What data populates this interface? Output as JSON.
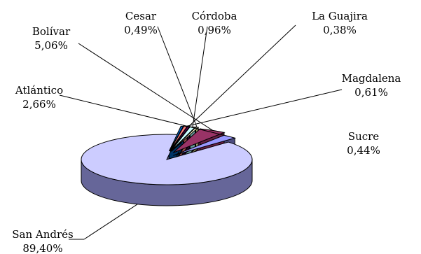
{
  "chart_data": {
    "type": "pie",
    "title": "",
    "style": "3d-exploded",
    "slices": [
      {
        "name": "San Andrés",
        "value_label": "89,40%",
        "value": 89.4,
        "color": "#ccccff",
        "side_color": "#666699"
      },
      {
        "name": "Atlántico",
        "value_label": "2,66%",
        "value": 2.66,
        "color": "#9999ff",
        "side_color": "#4d4d80"
      },
      {
        "name": "Bolívar",
        "value_label": "5,06%",
        "value": 5.06,
        "color": "#993366",
        "side_color": "#661f44"
      },
      {
        "name": "Cesar",
        "value_label": "0,49%",
        "value": 0.49,
        "color": "#ffffcc",
        "side_color": "#999966"
      },
      {
        "name": "Córdoba",
        "value_label": "0,96%",
        "value": 0.96,
        "color": "#ccffff",
        "side_color": "#669999"
      },
      {
        "name": "La Guajira",
        "value_label": "0,38%",
        "value": 0.38,
        "color": "#660066",
        "side_color": "#330033"
      },
      {
        "name": "Magdalena",
        "value_label": "0,61%",
        "value": 0.61,
        "color": "#ff8080",
        "side_color": "#994d4d"
      },
      {
        "name": "Sucre",
        "value_label": "0,44%",
        "value": 0.44,
        "color": "#0066cc",
        "side_color": "#003366"
      }
    ]
  }
}
